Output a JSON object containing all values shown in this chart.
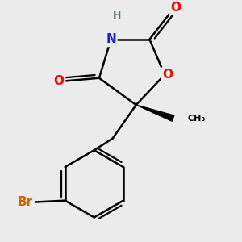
{
  "background_color": "#ebebeb",
  "bond_color": "#000000",
  "bond_width": 1.8,
  "atom_colors": {
    "N": "#2020d0",
    "O": "#ff0000",
    "Br": "#cc6600",
    "H": "#507878"
  },
  "font_size_atom": 11,
  "font_size_H": 9,
  "font_size_Me": 8
}
